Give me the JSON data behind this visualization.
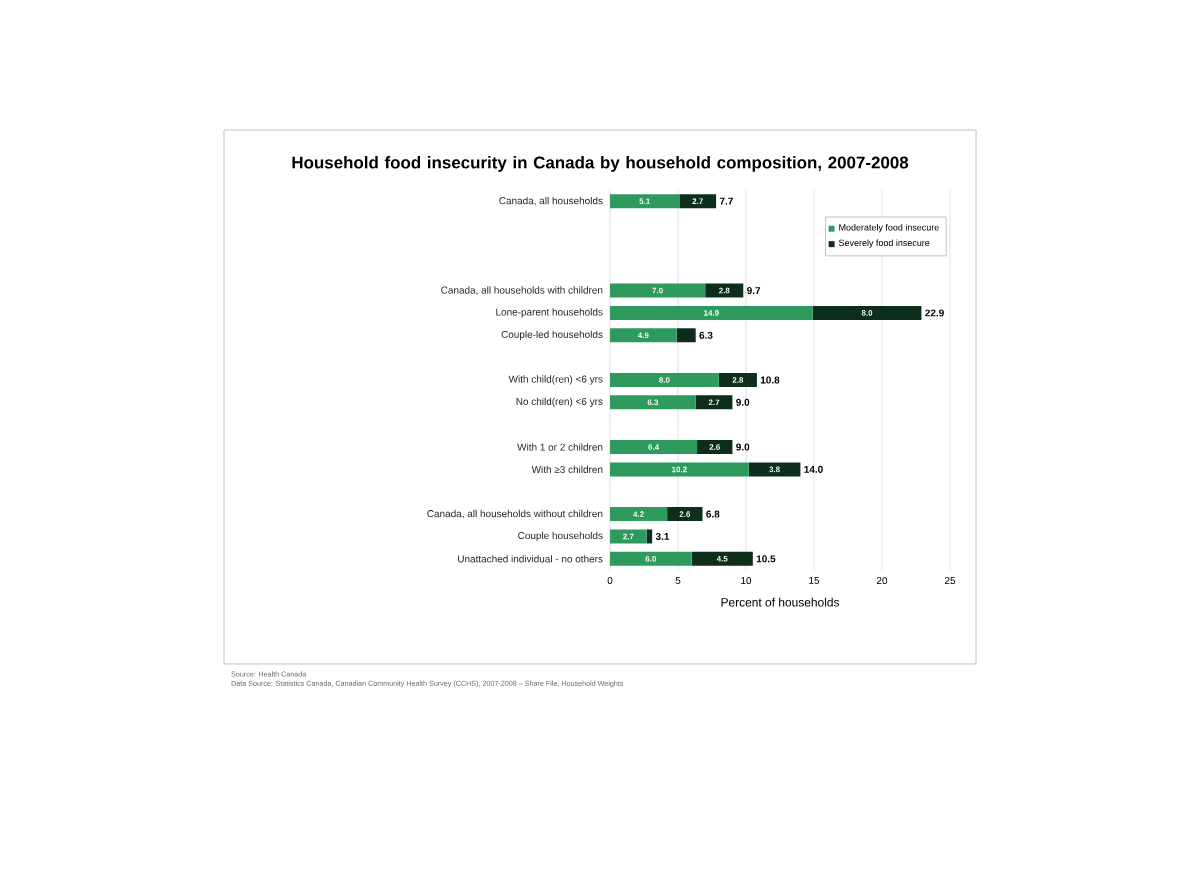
{
  "chart_data": {
    "type": "bar",
    "orientation": "horizontal",
    "stacked": true,
    "title": "Household food insecurity in Canada by household composition, 2007-2008",
    "xlabel": "Percent of households",
    "categories": [
      "Canada, all households",
      null,
      null,
      null,
      "Canada, all households with children",
      "Lone-parent households",
      "Couple-led households",
      null,
      "With child(ren) <6 yrs",
      "No child(ren) <6 yrs",
      null,
      "With 1 or 2 children",
      "With ≥3 children",
      null,
      "Canada, all households without children",
      "Couple households",
      "Unattached individual - no others"
    ],
    "series": [
      {
        "name": "Moderately food insecure",
        "color": "#2e9a5e",
        "values": [
          5.1,
          null,
          null,
          null,
          7.0,
          14.9,
          4.9,
          null,
          8.0,
          6.3,
          null,
          6.4,
          10.2,
          null,
          4.2,
          2.7,
          6.0
        ],
        "value_labels": [
          "5.1",
          null,
          null,
          null,
          "7.0",
          "14.9",
          "4.9",
          null,
          "8.0",
          "6.3",
          null,
          "6.4",
          "10.2",
          null,
          "4.2",
          "2.7",
          "6.0"
        ]
      },
      {
        "name": "Severely food insecure",
        "color": "#0d2e1a",
        "values": [
          2.7,
          null,
          null,
          null,
          2.8,
          8.0,
          1.4,
          null,
          2.8,
          2.7,
          null,
          2.6,
          3.8,
          null,
          2.6,
          0.4,
          4.5
        ],
        "value_labels": [
          "2.7",
          null,
          null,
          null,
          "2.8",
          "8.0",
          null,
          null,
          "2.8",
          "2.7",
          null,
          "2.6",
          "3.8",
          null,
          "2.6",
          null,
          "4.5"
        ]
      }
    ],
    "totals": [
      "7.7",
      null,
      null,
      null,
      "9.7",
      "22.9",
      "6.3",
      null,
      "10.8",
      "9.0",
      null,
      "9.0",
      "14.0",
      null,
      "6.8",
      "3.1",
      "10.5"
    ],
    "xlim": [
      0,
      25
    ],
    "xticks": [
      0,
      5,
      10,
      15,
      20,
      25
    ],
    "grid": "x",
    "legend": "top right",
    "annotations": [
      "Source: Health Canada",
      "Data Source: Statistics Canada, Canadian Community Health Survey (CCHS), 2007-2008 – Share File, Household Weights"
    ]
  }
}
